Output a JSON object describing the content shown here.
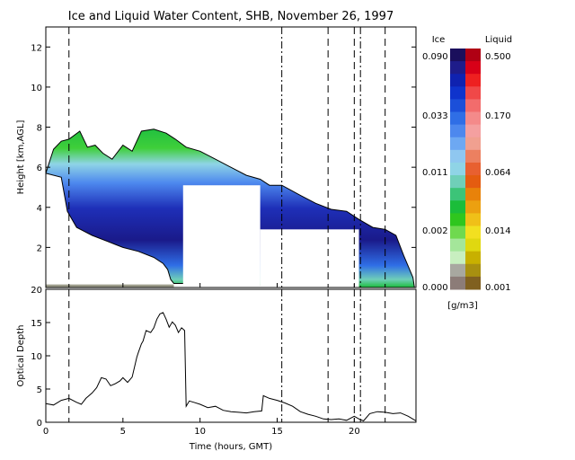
{
  "chart_data": [
    {
      "type": "heatmap",
      "title": "Ice and Liquid Water Content, SHB, November 26, 1997",
      "ylabel": "Height [km,AGL]",
      "xlim": [
        0,
        24
      ],
      "ylim": [
        0,
        13
      ],
      "yticks": [
        2,
        4,
        6,
        8,
        10,
        12
      ],
      "grid": false,
      "markers_time_hours": [
        1.5,
        15.3,
        18.3,
        20.0,
        20.4,
        22.0
      ],
      "cloud_top_km": [
        [
          0.5,
          6.9
        ],
        [
          1.0,
          7.3
        ],
        [
          1.5,
          7.4
        ],
        [
          2.2,
          7.8
        ],
        [
          2.7,
          7.0
        ],
        [
          3.2,
          7.1
        ],
        [
          3.7,
          6.7
        ],
        [
          4.3,
          6.4
        ],
        [
          5.0,
          7.1
        ],
        [
          5.6,
          6.8
        ],
        [
          6.2,
          7.8
        ],
        [
          7.0,
          7.9
        ],
        [
          7.8,
          7.7
        ],
        [
          8.4,
          7.4
        ],
        [
          9.1,
          7.0
        ],
        [
          10.0,
          6.8
        ],
        [
          11.0,
          6.4
        ],
        [
          12.0,
          6.0
        ],
        [
          13.0,
          5.6
        ],
        [
          13.9,
          5.4
        ],
        [
          14.5,
          5.1
        ],
        [
          15.3,
          5.1
        ],
        [
          16.5,
          4.6
        ],
        [
          17.5,
          4.2
        ],
        [
          18.5,
          3.9
        ],
        [
          19.5,
          3.8
        ],
        [
          20.3,
          3.4
        ],
        [
          21.2,
          3.0
        ],
        [
          22.0,
          2.9
        ],
        [
          22.7,
          2.6
        ],
        [
          23.2,
          1.6
        ],
        [
          23.8,
          0.5
        ]
      ],
      "cloud_base_km": [
        [
          0.0,
          5.7
        ],
        [
          1.0,
          5.5
        ],
        [
          1.4,
          3.8
        ],
        [
          2.0,
          3.0
        ],
        [
          3.0,
          2.6
        ],
        [
          4.0,
          2.3
        ],
        [
          5.0,
          2.0
        ],
        [
          6.0,
          1.8
        ],
        [
          7.0,
          1.5
        ],
        [
          7.6,
          1.2
        ],
        [
          7.9,
          0.9
        ],
        [
          8.1,
          0.4
        ],
        [
          8.3,
          0.2
        ],
        [
          9.0,
          0.2
        ],
        [
          20.4,
          0.0
        ],
        [
          23.9,
          0.0
        ]
      ],
      "no_data_gaps": [
        {
          "x0": 8.9,
          "x1": 13.9,
          "y0": 0.0,
          "y1": 5.1
        },
        {
          "x0": 13.9,
          "x1": 20.3,
          "y0": 0.0,
          "y1": 2.9
        }
      ],
      "colorbar": {
        "ice_label": "Ice",
        "liquid_label": "Liquid",
        "units": "[g/m3]",
        "ice_ticks": [
          "0.090",
          "0.033",
          "0.011",
          "0.002",
          "0.000"
        ],
        "liquid_ticks": [
          "0.500",
          "0.170",
          "0.064",
          "0.014",
          "0.001"
        ],
        "ice_colors": [
          "#1a0f5c",
          "#1e1c8a",
          "#0f22b0",
          "#0f33cc",
          "#1b4fd9",
          "#2f6ee6",
          "#4d88ee",
          "#6da8f2",
          "#8fc7f0",
          "#8fd4e6",
          "#6fcfb8",
          "#3cc478",
          "#1bbd3a",
          "#2fc61e",
          "#6fd94f",
          "#a4e69a",
          "#c8efc0",
          "#a8a8a0",
          "#8c7c78"
        ],
        "liquid_colors": [
          "#b00014",
          "#d80018",
          "#ee2020",
          "#f04848",
          "#f26c6c",
          "#f48a8a",
          "#f4a0a0",
          "#f0a090",
          "#ec8060",
          "#e86030",
          "#e45c10",
          "#e8820a",
          "#eca010",
          "#f0c018",
          "#f2e020",
          "#e0d810",
          "#c8b000",
          "#a89010",
          "#806020"
        ]
      }
    },
    {
      "type": "line",
      "xlabel": "Time (hours, GMT)",
      "ylabel": "Optical Depth",
      "xlim": [
        0,
        24
      ],
      "ylim": [
        0,
        20
      ],
      "xticks": [
        0,
        5,
        10,
        15,
        20
      ],
      "yticks": [
        0,
        5,
        10,
        15,
        20
      ],
      "grid": false,
      "markers_time_hours": [
        1.5,
        15.3,
        18.3,
        20.0,
        20.4,
        22.0
      ],
      "series": [
        {
          "x": [
            0.0,
            0.5,
            1.0,
            1.5,
            2.0,
            2.3,
            2.6,
            3.0,
            3.3,
            3.6,
            3.9,
            4.2,
            4.5,
            4.8,
            5.0,
            5.3,
            5.6,
            5.9,
            6.0,
            6.2,
            6.3,
            6.5,
            6.8,
            7.0,
            7.2,
            7.4,
            7.6,
            7.8,
            8.0,
            8.2,
            8.4,
            8.6,
            8.8,
            9.0,
            9.1,
            9.3,
            9.6,
            10.0,
            10.5,
            11.0,
            11.5,
            12.0,
            12.5,
            13.0,
            13.5,
            14.0,
            14.1,
            14.5,
            15.0,
            15.5,
            16.0,
            16.5,
            17.0,
            17.5,
            18.0,
            18.5,
            19.0,
            19.5,
            20.0,
            20.3,
            20.6,
            21.0,
            21.5,
            22.0,
            22.5,
            23.0,
            23.5,
            24.0
          ],
          "y": [
            2.8,
            2.6,
            3.3,
            3.6,
            3.0,
            2.7,
            3.6,
            4.4,
            5.2,
            6.7,
            6.5,
            5.5,
            5.8,
            6.2,
            6.7,
            6.0,
            6.8,
            9.8,
            10.5,
            11.8,
            12.2,
            13.8,
            13.5,
            14.2,
            15.5,
            16.3,
            16.5,
            15.5,
            14.3,
            15.1,
            14.6,
            13.5,
            14.2,
            13.8,
            2.4,
            3.2,
            3.0,
            2.7,
            2.2,
            2.4,
            1.8,
            1.6,
            1.5,
            1.4,
            1.6,
            1.7,
            4.0,
            3.6,
            3.3,
            2.9,
            2.4,
            1.6,
            1.2,
            0.9,
            0.5,
            0.4,
            0.5,
            0.3,
            0.9,
            0.5,
            0.2,
            1.3,
            1.6,
            1.5,
            1.3,
            1.4,
            0.9,
            0.2
          ]
        }
      ]
    }
  ]
}
